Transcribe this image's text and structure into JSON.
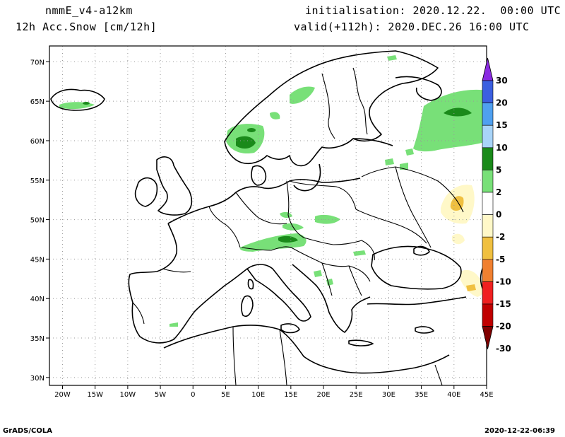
{
  "header": {
    "model": "nmmE_v4-a12km",
    "field": "12h Acc.Snow [cm/12h]",
    "init": "initialisation: 2020.12.22.  00:00 UTC",
    "valid": "valid(+112h): 2020.DEC.26 16:00 UTC"
  },
  "footer": {
    "credit": "GrADS/COLA",
    "timestamp": "2020-12-22-06:39"
  },
  "map": {
    "lon_range": [
      -22,
      45
    ],
    "lat_range": [
      29,
      72
    ],
    "lon_ticks": [
      {
        "value": -20,
        "label": "20W"
      },
      {
        "value": -15,
        "label": "15W"
      },
      {
        "value": -10,
        "label": "10W"
      },
      {
        "value": -5,
        "label": "5W"
      },
      {
        "value": 0,
        "label": "0"
      },
      {
        "value": 5,
        "label": "5E"
      },
      {
        "value": 10,
        "label": "10E"
      },
      {
        "value": 15,
        "label": "15E"
      },
      {
        "value": 20,
        "label": "20E"
      },
      {
        "value": 25,
        "label": "25E"
      },
      {
        "value": 30,
        "label": "30E"
      },
      {
        "value": 35,
        "label": "35E"
      },
      {
        "value": 40,
        "label": "40E"
      },
      {
        "value": 45,
        "label": "45E"
      }
    ],
    "lat_ticks": [
      {
        "value": 30,
        "label": "30N"
      },
      {
        "value": 35,
        "label": "35N"
      },
      {
        "value": 40,
        "label": "40N"
      },
      {
        "value": 45,
        "label": "45N"
      },
      {
        "value": 50,
        "label": "50N"
      },
      {
        "value": 55,
        "label": "55N"
      },
      {
        "value": 60,
        "label": "60N"
      },
      {
        "value": 65,
        "label": "65N"
      },
      {
        "value": 70,
        "label": "70N"
      }
    ],
    "grid": "dotted"
  },
  "legend": {
    "labels": [
      "30",
      "20",
      "15",
      "10",
      "5",
      "2",
      "0",
      "-2",
      "-5",
      "-10",
      "-15",
      "-20",
      "-30"
    ],
    "colors_top_to_bottom": [
      "#8a2be2",
      "#3b5fe0",
      "#4fa0f0",
      "#a8d4f8",
      "#1a8a1a",
      "#78e078",
      "#ffffff",
      "#fff8c8",
      "#f0c040",
      "#f08030",
      "#f02020",
      "#c00000",
      "#800000"
    ]
  }
}
